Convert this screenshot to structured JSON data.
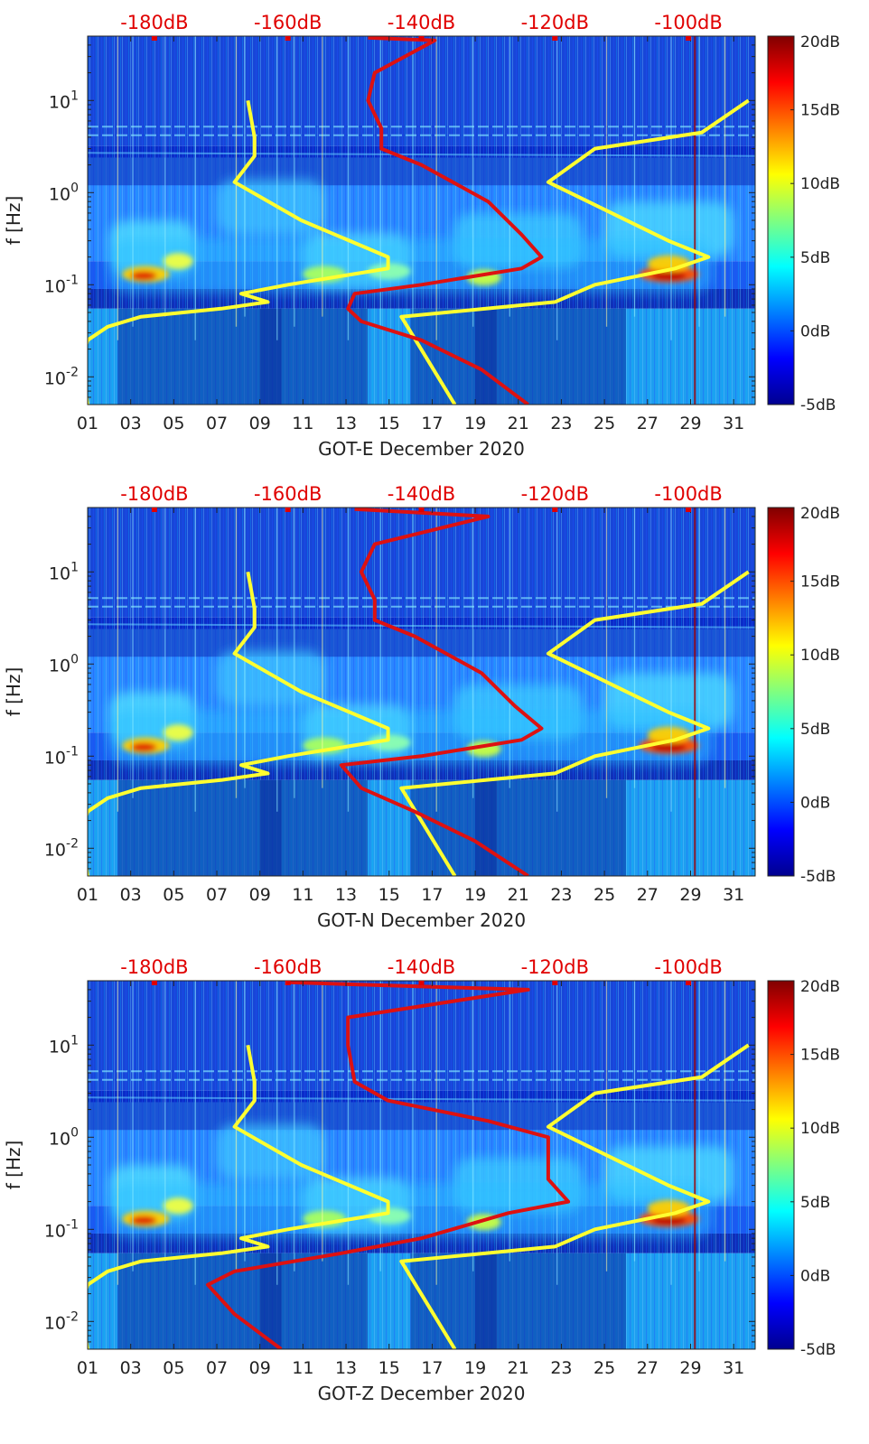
{
  "chart_data": [
    {
      "type": "heatmap",
      "title": "",
      "xlabel": "GOT-E December 2020",
      "ylabel": "f [Hz]",
      "x_ticks": [
        "01",
        "03",
        "05",
        "07",
        "09",
        "11",
        "13",
        "15",
        "17",
        "19",
        "21",
        "23",
        "25",
        "27",
        "29",
        "31"
      ],
      "x_range": [
        1,
        32
      ],
      "y_scale": "log",
      "y_range": [
        0.005,
        50
      ],
      "y_ticks": [
        {
          "value": 0.01,
          "base": "10",
          "exp": "-2"
        },
        {
          "value": 0.1,
          "base": "10",
          "exp": "-1"
        },
        {
          "value": 1,
          "base": "10",
          "exp": "0"
        },
        {
          "value": 10,
          "base": "10",
          "exp": "1"
        }
      ],
      "top_axis_labels": [
        "-180dB",
        "-160dB",
        "-140dB",
        "-120dB",
        "-100dB"
      ],
      "top_axis_range_db": [
        -190,
        -90
      ],
      "colorbar": {
        "range": [
          -5,
          20
        ],
        "ticks": [
          "20dB",
          "15dB",
          "10dB",
          "5dB",
          "0dB",
          "-5dB"
        ]
      },
      "series": [
        {
          "name": "yellow-noise-model",
          "color": "#ffff30",
          "points_db_hz": [
            [
              -190,
              0.005
            ],
            [
              -191,
              0.015
            ],
            [
              -190,
              0.025
            ],
            [
              -187,
              0.035
            ],
            [
              -182,
              0.045
            ],
            [
              -170,
              0.055
            ],
            [
              -163,
              0.065
            ],
            [
              -167,
              0.08
            ],
            [
              -160,
              0.1
            ],
            [
              -145,
              0.15
            ],
            [
              -145,
              0.2
            ],
            [
              -158,
              0.5
            ],
            [
              -168,
              1.3
            ],
            [
              -165,
              2.5
            ],
            [
              -165,
              4
            ],
            [
              -166,
              10
            ]
          ]
        },
        {
          "name": "yellow-noise-model-high",
          "color": "#ffff30",
          "points_db_hz": [
            [
              -135,
              0.005
            ],
            [
              -139,
              0.015
            ],
            [
              -143,
              0.045
            ],
            [
              -120,
              0.065
            ],
            [
              -114,
              0.1
            ],
            [
              -102,
              0.15
            ],
            [
              -97,
              0.2
            ],
            [
              -103,
              0.3
            ],
            [
              -121,
              1.3
            ],
            [
              -114,
              3
            ],
            [
              -98,
              4.5
            ],
            [
              -91,
              10
            ]
          ]
        },
        {
          "name": "red-psd-curve",
          "color": "#dd1111",
          "points_db_hz": [
            [
              -124,
              0.005
            ],
            [
              -131,
              0.012
            ],
            [
              -140,
              0.025
            ],
            [
              -149,
              0.04
            ],
            [
              -151,
              0.055
            ],
            [
              -150,
              0.08
            ],
            [
              -140,
              0.1
            ],
            [
              -125,
              0.15
            ],
            [
              -122,
              0.2
            ],
            [
              -125,
              0.35
            ],
            [
              -130,
              0.8
            ],
            [
              -140,
              2
            ],
            [
              -146,
              3
            ],
            [
              -146,
              5
            ],
            [
              -148,
              10
            ],
            [
              -147,
              20
            ],
            [
              -138,
              45
            ],
            [
              -148,
              48
            ]
          ]
        }
      ]
    },
    {
      "type": "heatmap",
      "title": "",
      "xlabel": "GOT-N December 2020",
      "ylabel": "f [Hz]",
      "x_ticks": [
        "01",
        "03",
        "05",
        "07",
        "09",
        "11",
        "13",
        "15",
        "17",
        "19",
        "21",
        "23",
        "25",
        "27",
        "29",
        "31"
      ],
      "x_range": [
        1,
        32
      ],
      "y_scale": "log",
      "y_range": [
        0.005,
        50
      ],
      "y_ticks": [
        {
          "value": 0.01,
          "base": "10",
          "exp": "-2"
        },
        {
          "value": 0.1,
          "base": "10",
          "exp": "-1"
        },
        {
          "value": 1,
          "base": "10",
          "exp": "0"
        },
        {
          "value": 10,
          "base": "10",
          "exp": "1"
        }
      ],
      "top_axis_labels": [
        "-180dB",
        "-160dB",
        "-140dB",
        "-120dB",
        "-100dB"
      ],
      "top_axis_range_db": [
        -190,
        -90
      ],
      "colorbar": {
        "range": [
          -5,
          20
        ],
        "ticks": [
          "20dB",
          "15dB",
          "10dB",
          "5dB",
          "0dB",
          "-5dB"
        ]
      },
      "series": [
        {
          "name": "yellow-noise-model",
          "color": "#ffff30",
          "points_db_hz": [
            [
              -190,
              0.005
            ],
            [
              -191,
              0.015
            ],
            [
              -190,
              0.025
            ],
            [
              -187,
              0.035
            ],
            [
              -182,
              0.045
            ],
            [
              -170,
              0.055
            ],
            [
              -163,
              0.065
            ],
            [
              -167,
              0.08
            ],
            [
              -160,
              0.1
            ],
            [
              -145,
              0.15
            ],
            [
              -145,
              0.2
            ],
            [
              -158,
              0.5
            ],
            [
              -168,
              1.3
            ],
            [
              -165,
              2.5
            ],
            [
              -165,
              4
            ],
            [
              -166,
              10
            ]
          ]
        },
        {
          "name": "yellow-noise-model-high",
          "color": "#ffff30",
          "points_db_hz": [
            [
              -135,
              0.005
            ],
            [
              -139,
              0.015
            ],
            [
              -143,
              0.045
            ],
            [
              -120,
              0.065
            ],
            [
              -114,
              0.1
            ],
            [
              -102,
              0.15
            ],
            [
              -97,
              0.2
            ],
            [
              -103,
              0.3
            ],
            [
              -121,
              1.3
            ],
            [
              -114,
              3
            ],
            [
              -98,
              4.5
            ],
            [
              -91,
              10
            ]
          ]
        },
        {
          "name": "red-psd-curve",
          "color": "#dd1111",
          "points_db_hz": [
            [
              -124,
              0.005
            ],
            [
              -132,
              0.012
            ],
            [
              -141,
              0.025
            ],
            [
              -149,
              0.045
            ],
            [
              -152,
              0.08
            ],
            [
              -140,
              0.1
            ],
            [
              -125,
              0.15
            ],
            [
              -122,
              0.2
            ],
            [
              -126,
              0.35
            ],
            [
              -131,
              0.8
            ],
            [
              -141,
              2
            ],
            [
              -147,
              3
            ],
            [
              -147,
              5
            ],
            [
              -149,
              10
            ],
            [
              -147,
              20
            ],
            [
              -130,
              40
            ],
            [
              -150,
              48
            ]
          ]
        }
      ]
    },
    {
      "type": "heatmap",
      "title": "",
      "xlabel": "GOT-Z December 2020",
      "ylabel": "f [Hz]",
      "x_ticks": [
        "01",
        "03",
        "05",
        "07",
        "09",
        "11",
        "13",
        "15",
        "17",
        "19",
        "21",
        "23",
        "25",
        "27",
        "29",
        "31"
      ],
      "x_range": [
        1,
        32
      ],
      "y_scale": "log",
      "y_range": [
        0.005,
        50
      ],
      "y_ticks": [
        {
          "value": 0.01,
          "base": "10",
          "exp": "-2"
        },
        {
          "value": 0.1,
          "base": "10",
          "exp": "-1"
        },
        {
          "value": 1,
          "base": "10",
          "exp": "0"
        },
        {
          "value": 10,
          "base": "10",
          "exp": "1"
        }
      ],
      "top_axis_labels": [
        "-180dB",
        "-160dB",
        "-140dB",
        "-120dB",
        "-100dB"
      ],
      "top_axis_range_db": [
        -190,
        -90
      ],
      "colorbar": {
        "range": [
          -5,
          20
        ],
        "ticks": [
          "20dB",
          "15dB",
          "10dB",
          "5dB",
          "0dB",
          "-5dB"
        ]
      },
      "series": [
        {
          "name": "yellow-noise-model",
          "color": "#ffff30",
          "points_db_hz": [
            [
              -190,
              0.005
            ],
            [
              -191,
              0.015
            ],
            [
              -190,
              0.025
            ],
            [
              -187,
              0.035
            ],
            [
              -182,
              0.045
            ],
            [
              -170,
              0.055
            ],
            [
              -163,
              0.065
            ],
            [
              -167,
              0.08
            ],
            [
              -160,
              0.1
            ],
            [
              -145,
              0.15
            ],
            [
              -145,
              0.2
            ],
            [
              -158,
              0.5
            ],
            [
              -168,
              1.3
            ],
            [
              -165,
              2.5
            ],
            [
              -165,
              4
            ],
            [
              -166,
              10
            ]
          ]
        },
        {
          "name": "yellow-noise-model-high",
          "color": "#ffff30",
          "points_db_hz": [
            [
              -135,
              0.005
            ],
            [
              -139,
              0.015
            ],
            [
              -143,
              0.045
            ],
            [
              -120,
              0.065
            ],
            [
              -114,
              0.1
            ],
            [
              -102,
              0.15
            ],
            [
              -97,
              0.2
            ],
            [
              -103,
              0.3
            ],
            [
              -121,
              1.3
            ],
            [
              -114,
              3
            ],
            [
              -98,
              4.5
            ],
            [
              -91,
              10
            ]
          ]
        },
        {
          "name": "red-psd-curve",
          "color": "#dd1111",
          "points_db_hz": [
            [
              -161,
              0.005
            ],
            [
              -168,
              0.012
            ],
            [
              -172,
              0.025
            ],
            [
              -168,
              0.035
            ],
            [
              -152,
              0.055
            ],
            [
              -140,
              0.08
            ],
            [
              -127,
              0.15
            ],
            [
              -118,
              0.2
            ],
            [
              -121,
              0.35
            ],
            [
              -121,
              1.0
            ],
            [
              -130,
              1.5
            ],
            [
              -145,
              2.5
            ],
            [
              -150,
              4
            ],
            [
              -151,
              10
            ],
            [
              -151,
              20
            ],
            [
              -124,
              40
            ],
            [
              -160,
              48
            ]
          ]
        }
      ]
    }
  ]
}
